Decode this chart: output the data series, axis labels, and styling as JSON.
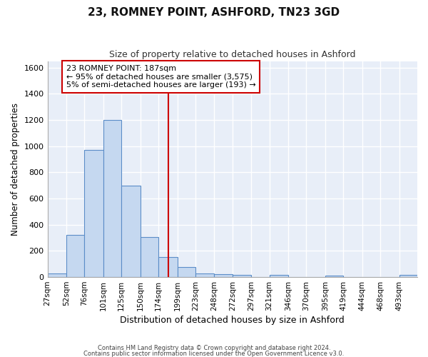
{
  "title1": "23, ROMNEY POINT, ASHFORD, TN23 3GD",
  "title2": "Size of property relative to detached houses in Ashford",
  "xlabel": "Distribution of detached houses by size in Ashford",
  "ylabel": "Number of detached properties",
  "footer1": "Contains HM Land Registry data © Crown copyright and database right 2024.",
  "footer2": "Contains public sector information licensed under the Open Government Licence v3.0.",
  "annotation_line1": "23 ROMNEY POINT: 187sqm",
  "annotation_line2": "← 95% of detached houses are smaller (3,575)",
  "annotation_line3": "5% of semi-detached houses are larger (193) →",
  "property_size": 187,
  "bar_edges": [
    27,
    52,
    76,
    101,
    125,
    150,
    174,
    199,
    223,
    248,
    272,
    297,
    321,
    346,
    370,
    395,
    419,
    444,
    468,
    493,
    517
  ],
  "bar_heights": [
    30,
    320,
    970,
    1200,
    700,
    305,
    155,
    75,
    30,
    20,
    15,
    0,
    15,
    0,
    0,
    10,
    0,
    0,
    0,
    15
  ],
  "bar_color": "#c5d8f0",
  "bar_edge_color": "#5b8dc8",
  "vline_x": 187,
  "vline_color": "#cc0000",
  "ylim": [
    0,
    1650
  ],
  "yticks": [
    0,
    200,
    400,
    600,
    800,
    1000,
    1200,
    1400,
    1600
  ],
  "fig_bg_color": "#ffffff",
  "plot_bg_color": "#e8eef8",
  "grid_color": "#ffffff",
  "annotation_box_color": "#cc0000"
}
